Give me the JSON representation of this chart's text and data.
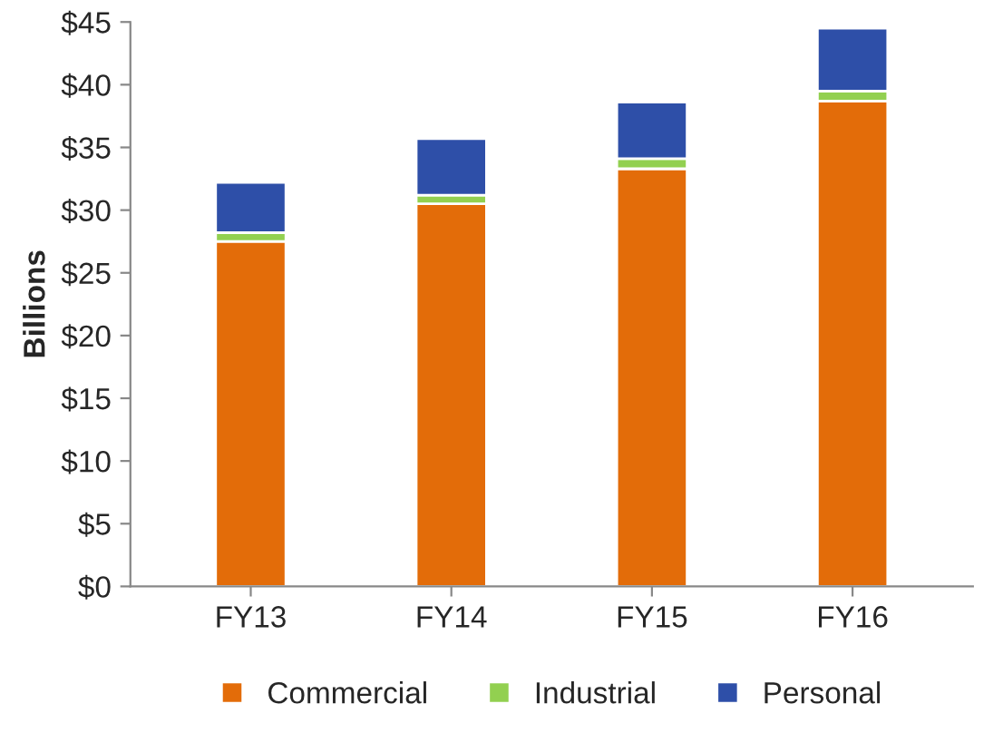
{
  "chart_data": {
    "type": "bar",
    "stacked": true,
    "ylabel": "Billions",
    "categories": [
      "FY13",
      "FY14",
      "FY15",
      "FY16"
    ],
    "series": [
      {
        "name": "Commercial",
        "color": "#e36c09",
        "values": [
          27.5,
          30.5,
          33.3,
          38.7
        ]
      },
      {
        "name": "Industrial",
        "color": "#92d050",
        "values": [
          0.7,
          0.7,
          0.8,
          0.8
        ]
      },
      {
        "name": "Personal",
        "color": "#2e4fa8",
        "values": [
          4,
          4.5,
          4.5,
          5
        ]
      }
    ],
    "ylim": [
      0,
      45
    ],
    "yticks": [
      {
        "value": 0,
        "label": "$0"
      },
      {
        "value": 5,
        "label": "$5"
      },
      {
        "value": 10,
        "label": "$10"
      },
      {
        "value": 15,
        "label": "$15"
      },
      {
        "value": 20,
        "label": "$20"
      },
      {
        "value": 25,
        "label": "$25"
      },
      {
        "value": 30,
        "label": "$30"
      },
      {
        "value": 35,
        "label": "$35"
      },
      {
        "value": 40,
        "label": "$40"
      },
      {
        "value": 45,
        "label": "$45"
      }
    ],
    "grid": false,
    "legend": "bottom"
  }
}
